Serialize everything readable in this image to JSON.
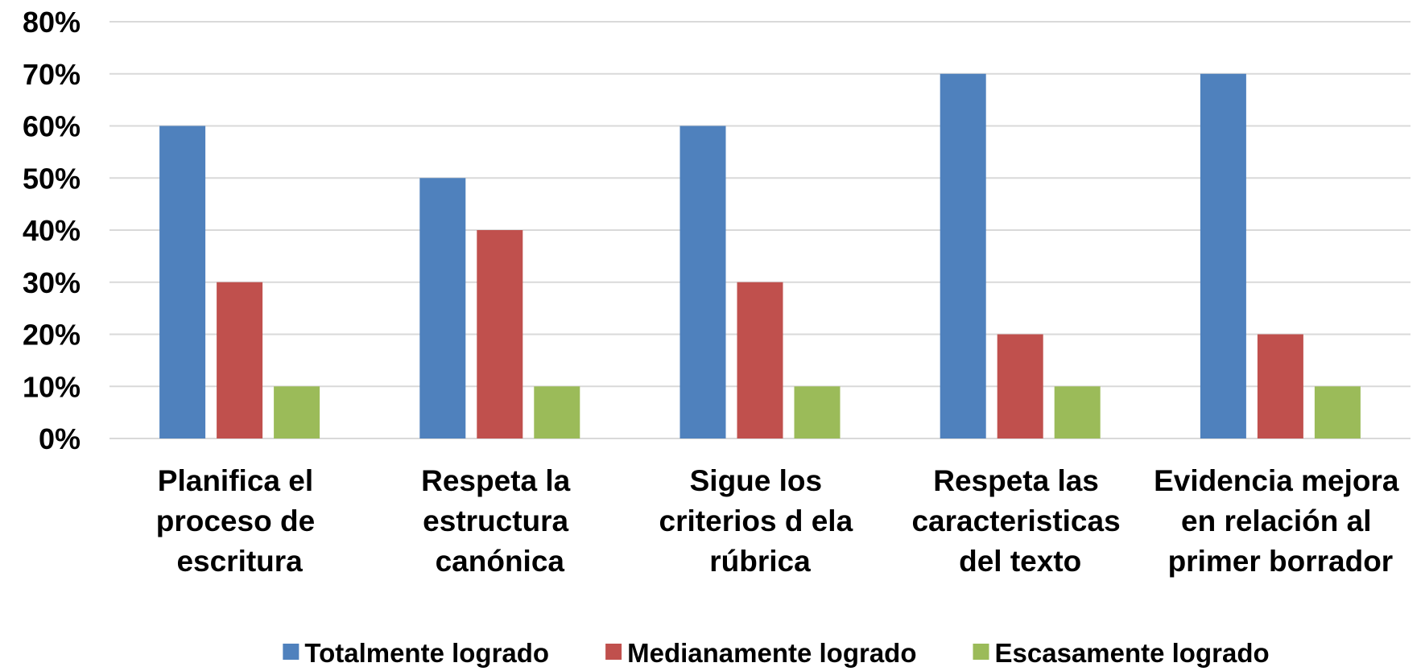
{
  "chart_data": {
    "type": "bar",
    "categories": [
      "Planifica el proceso de escritura",
      "Respeta la estructura canónica",
      "Sigue los criterios d ela rúbrica",
      "Respeta las caracteristicas del texto",
      "Evidencia mejora en relación al primer borrador"
    ],
    "series": [
      {
        "name": "Totalmente logrado",
        "color": "#4f81bd",
        "values": [
          60,
          50,
          60,
          70,
          70
        ]
      },
      {
        "name": "Medianamente logrado",
        "color": "#c0504d",
        "values": [
          30,
          40,
          30,
          20,
          20
        ]
      },
      {
        "name": "Escasamente logrado",
        "color": "#9bbb59",
        "values": [
          10,
          10,
          10,
          10,
          10
        ]
      }
    ],
    "ylim": [
      0,
      80
    ],
    "yticks": [
      {
        "value": 0,
        "label": "0%"
      },
      {
        "value": 10,
        "label": "10%"
      },
      {
        "value": 20,
        "label": "20%"
      },
      {
        "value": 30,
        "label": "30%"
      },
      {
        "value": 40,
        "label": "40%"
      },
      {
        "value": 50,
        "label": "50%"
      },
      {
        "value": 60,
        "label": "60%"
      },
      {
        "value": 70,
        "label": "70%"
      },
      {
        "value": 80,
        "label": "80%"
      }
    ],
    "grid": true,
    "legend": "bottom"
  }
}
